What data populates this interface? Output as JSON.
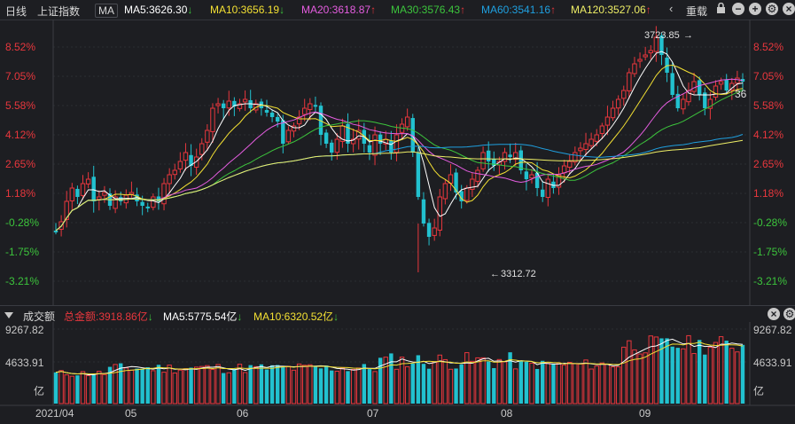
{
  "toolbar": {
    "period": "日线",
    "index": "上证指数",
    "indicator": "MA",
    "ma5": "MA5:3626.30",
    "ma10": "MA10:3656.19",
    "ma20": "MA20:3618.87",
    "ma30": "MA30:3576.43",
    "ma60": "MA60:3541.16",
    "ma120": "MA120:3527.06",
    "overlay": "重载",
    "arrow_down": "↓",
    "arrow_up": "↑"
  },
  "colors": {
    "ma5": "#ffffff",
    "ma10": "#f3e033",
    "ma20": "#e55de0",
    "ma30": "#3cc43c",
    "ma60": "#1fa0e0",
    "ma120": "#eeee66",
    "up": "#e8373d",
    "down": "#22c1cf"
  },
  "price_axis": {
    "ticks": [
      "8.52%",
      "7.05%",
      "5.58%",
      "4.12%",
      "2.65%",
      "1.18%",
      "-0.28%",
      "-1.75%",
      "-3.21%"
    ]
  },
  "annotations": {
    "high": "3723.85",
    "low": "3312.72",
    "partial_label": "36"
  },
  "volume_bar": {
    "title": "成交额",
    "total": "总金额:3918.86亿",
    "ma5": "MA5:5775.54亿",
    "ma10": "MA10:6320.52亿"
  },
  "volume_axis": {
    "ticks": [
      "9267.82",
      "4633.91",
      "亿"
    ]
  },
  "date_axis": {
    "labels": [
      "2021/04",
      "05",
      "06",
      "07",
      "08",
      "09"
    ]
  },
  "chart_data": {
    "type": "candlestick",
    "series": [
      "MA5",
      "MA10",
      "MA20",
      "MA30",
      "MA60",
      "MA120"
    ],
    "y_ticks_pct": [
      8.52,
      7.05,
      5.58,
      4.12,
      2.65,
      1.18,
      -0.28,
      -1.75,
      -3.21
    ],
    "high_marker": 3723.85,
    "low_marker": 3312.72,
    "volume_ticks": [
      9267.82,
      4633.91
    ]
  }
}
